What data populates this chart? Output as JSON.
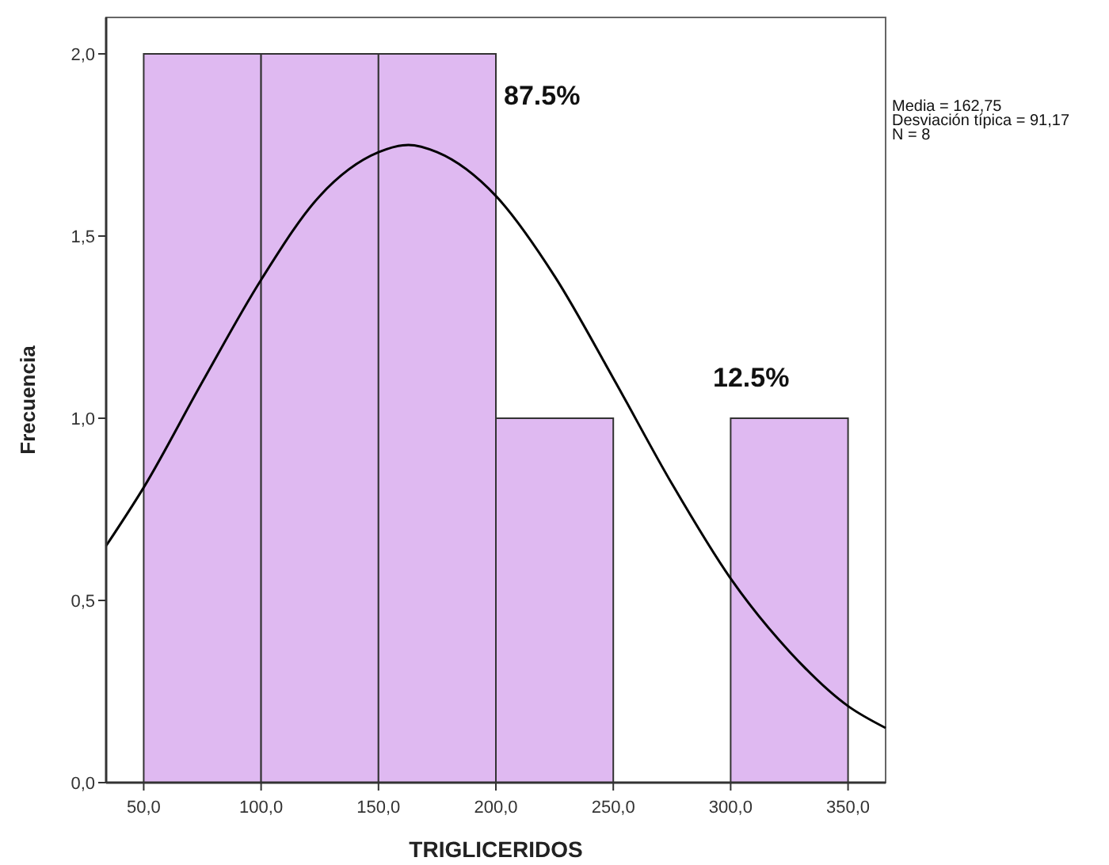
{
  "chart_data": {
    "type": "histogram",
    "xlabel": "TRIGLICERIDOS",
    "ylabel": "Frecuencia",
    "bins": [
      50,
      100,
      150,
      200,
      250,
      300,
      350
    ],
    "values": [
      2,
      2,
      2,
      1,
      0,
      1
    ],
    "color": "#dfb9f1",
    "series": [
      {
        "type": "line",
        "color": "#000000",
        "x": [
          34,
          50,
          75,
          100,
          125,
          150,
          162.75,
          175,
          200,
          225,
          250,
          275,
          300,
          325,
          350,
          366
        ],
        "values": [
          0.65,
          0.81,
          1.1,
          1.38,
          1.61,
          1.73,
          1.75,
          1.73,
          1.61,
          1.39,
          1.11,
          0.82,
          0.56,
          0.36,
          0.21,
          0.15
        ]
      }
    ],
    "xlim": [
      34,
      366
    ],
    "ylim": [
      0,
      2.1
    ],
    "xticks": [
      {
        "value": 50,
        "label": "50,0"
      },
      {
        "value": 100,
        "label": "100,0"
      },
      {
        "value": 150,
        "label": "150,0"
      },
      {
        "value": 200,
        "label": "200,0"
      },
      {
        "value": 250,
        "label": "250,0"
      },
      {
        "value": 300,
        "label": "300,0"
      },
      {
        "value": 350,
        "label": "350,0"
      }
    ],
    "yticks": [
      {
        "value": 0,
        "label": "0,0"
      },
      {
        "value": 0.5,
        "label": "0,5"
      },
      {
        "value": 1,
        "label": "1,0"
      },
      {
        "value": 1.5,
        "label": "1,5"
      },
      {
        "value": 2,
        "label": "2,0"
      }
    ],
    "grid": false,
    "annotations": [
      "87.5%",
      "12.5%",
      "Media = 162,75",
      "Desviación típica = 91,17",
      "N = 8"
    ]
  }
}
